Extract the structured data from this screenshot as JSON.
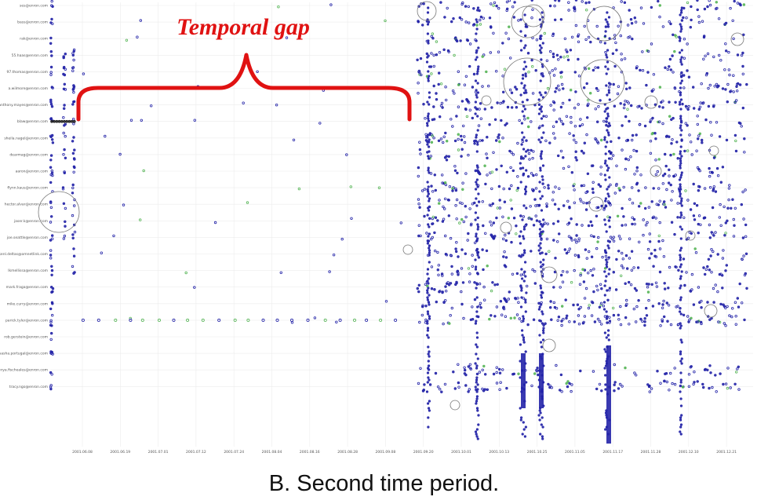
{
  "caption": "B. Second time period.",
  "annotation": {
    "text": "Temporal gap",
    "color": "#e01212"
  },
  "chart_data": {
    "type": "scatter",
    "rows": [
      "ses@enron.com",
      "bass@enron.com",
      "rak@enron.com",
      "55.haas@enron.com",
      "97.thomas@enron.com",
      "a.wilmore@enron.com",
      "anthony.mayes@enron.com",
      "blaw@enron.com",
      "sheila.nagel@enron.com",
      "dearmag@enron.com",
      "aaron@enron.com",
      "flynn.kaus@enron.com",
      "hector.alvar@enron.com",
      "jaser.k@enron.com",
      "joe.seattle@enron.com",
      "kenl.deltas@omnetlink.com",
      "lkmellissa@enron.com",
      "mark.fraga@enron.com",
      "mike.curry@enron.com",
      "parick.tyler@enron.com",
      "rob.gerstein@enron.com",
      "sasha.portugal@enron.com",
      "tonya.fischeales@enron.com",
      "tracy.ngo@enron.com"
    ],
    "x_ticks": [
      "2001.06.08",
      "2001.06.19",
      "2001.07.01",
      "2001.07.12",
      "2001.07.24",
      "2001.08.04",
      "2001.08.16",
      "2001.08.28",
      "2001.09.08",
      "2001.09.20",
      "2001.10.01",
      "2001.10.13",
      "2001.10.25",
      "2001.11.05",
      "2001.11.17",
      "2001.11.28",
      "2001.12.10",
      "2001.12.21"
    ],
    "marker_colors": {
      "primary": "#2424a8",
      "secondary": "#58b658",
      "large": "#777777"
    },
    "grid": true
  }
}
